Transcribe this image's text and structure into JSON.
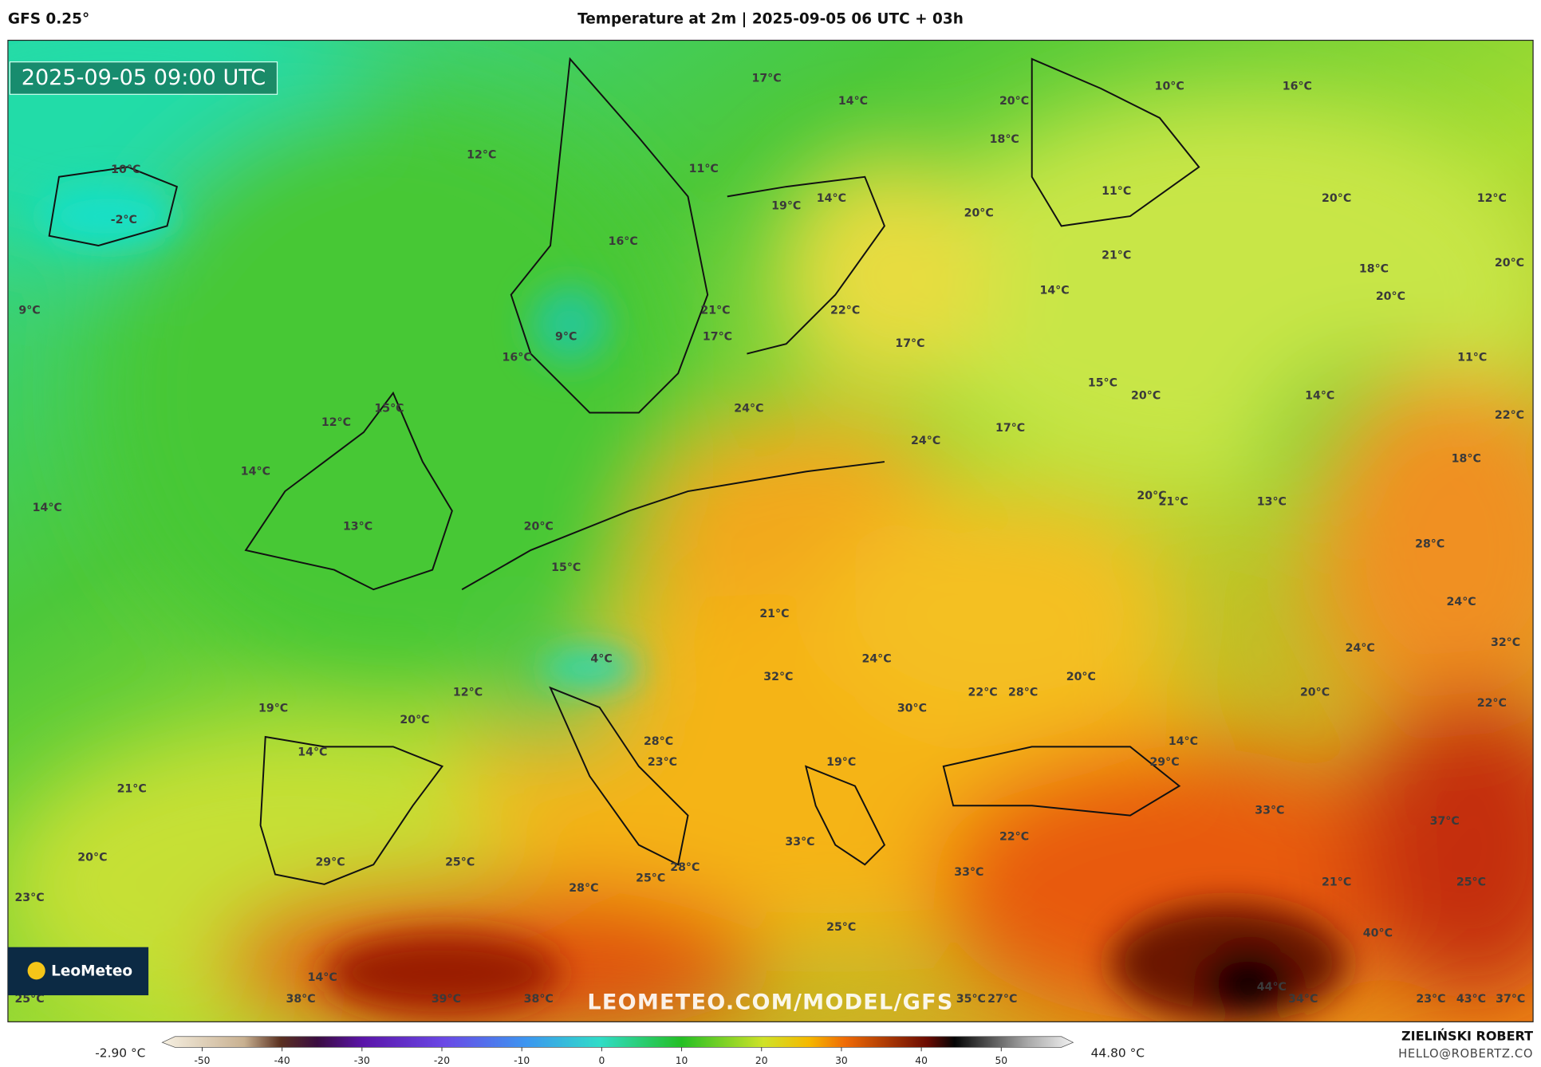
{
  "header": {
    "model": "GFS 0.25°",
    "title": "Temperature at 2m | 2025-09-05 06 UTC + 03h"
  },
  "map": {
    "valid_time": "2025-09-05 09:00 UTC",
    "watermark": "LEOMETEO.COM/MODEL/GFS",
    "logo": "LeoMeteo",
    "labels": [
      "17°C",
      "14°C",
      "20°C",
      "10°C",
      "16°C",
      "12°C",
      "10°C",
      "11°C",
      "18°C",
      "-2°C",
      "19°C",
      "14°C",
      "20°C",
      "11°C",
      "20°C",
      "12°C",
      "16°C",
      "21°C",
      "18°C",
      "20°C",
      "14°C",
      "20°C",
      "9°C",
      "21°C",
      "22°C",
      "9°C",
      "17°C",
      "17°C",
      "16°C",
      "11°C",
      "15°C",
      "20°C",
      "14°C",
      "15°C",
      "24°C",
      "12°C",
      "22°C",
      "17°C",
      "24°C",
      "18°C",
      "14°C",
      "20°C",
      "21°C",
      "13°C",
      "14°C",
      "13°C",
      "20°C",
      "28°C",
      "15°C",
      "24°C",
      "21°C",
      "32°C",
      "24°C",
      "24°C",
      "4°C",
      "32°C",
      "20°C",
      "22°C",
      "28°C",
      "20°C",
      "12°C",
      "22°C",
      "19°C",
      "30°C",
      "20°C",
      "28°C",
      "14°C",
      "14°C",
      "23°C",
      "19°C",
      "29°C",
      "21°C",
      "33°C",
      "37°C",
      "22°C",
      "33°C",
      "20°C",
      "29°C",
      "25°C",
      "28°C",
      "33°C",
      "25°C",
      "21°C",
      "25°C",
      "28°C",
      "23°C",
      "25°C",
      "40°C",
      "14°C",
      "44°C",
      "25°C",
      "38°C",
      "39°C",
      "38°C",
      "35°C",
      "27°C",
      "34°C",
      "23°C",
      "43°C",
      "37°C"
    ]
  },
  "colorbar": {
    "min_label": "-2.90 °C",
    "max_label": "44.80 °C",
    "lim": [
      -55,
      59
    ],
    "ticks": [
      -50,
      -40,
      -30,
      -20,
      -10,
      0,
      10,
      20,
      30,
      40,
      50
    ]
  },
  "credits": {
    "author": "ZIELIŃSKI ROBERT",
    "email": "HELLO@ROBERTZ.CO"
  }
}
